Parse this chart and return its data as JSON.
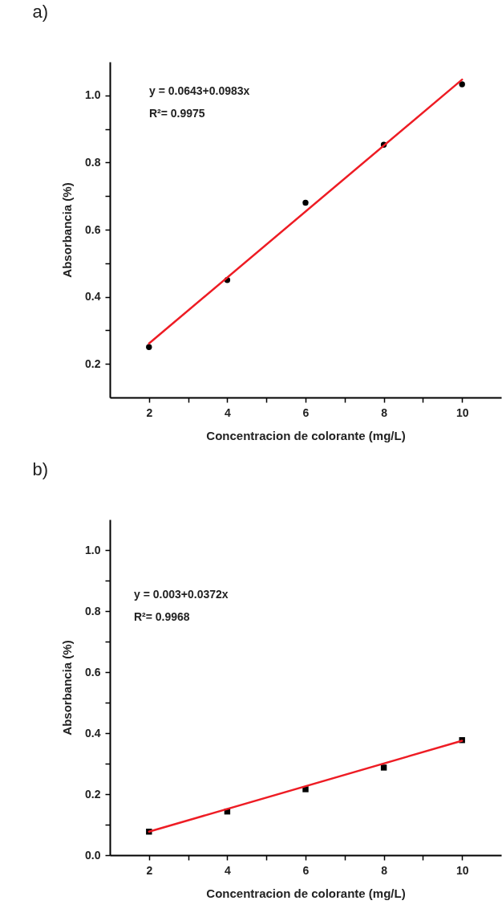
{
  "chart_data": [
    {
      "type": "scatter",
      "title": "a)",
      "xlabel": "Concentracion de colorante (mg/L)",
      "ylabel": "Absorbancia (%)",
      "grid": false,
      "xlim": [
        1,
        11
      ],
      "xticks": [
        2,
        {
          "value": 3,
          "label": null
        },
        4,
        {
          "value": 5,
          "label": null
        },
        6,
        {
          "value": 7,
          "label": null
        },
        8,
        {
          "value": 9,
          "label": null
        },
        10
      ],
      "ylim": [
        0.1,
        1.1
      ],
      "yticks": [
        0.2,
        {
          "value": 0.3,
          "label": null
        },
        0.4,
        {
          "value": 0.5,
          "label": null
        },
        0.6,
        {
          "value": 0.7,
          "label": null
        },
        0.8,
        {
          "value": 0.9,
          "label": null
        },
        {
          "value": 1,
          "label": "1.0"
        }
      ],
      "annotations": [
        "y = 0.0643+0.0983x",
        "R²= 0.9975"
      ],
      "series": [
        {
          "marker": "circle",
          "color": "#000000",
          "x": [
            2,
            4,
            6,
            8,
            10
          ],
          "values": [
            0.25,
            0.45,
            0.68,
            0.853,
            1.033
          ]
        },
        {
          "type": "line",
          "color": "#ee1c24",
          "x": [
            2,
            10
          ],
          "values": [
            0.261,
            1.047
          ]
        }
      ]
    },
    {
      "type": "scatter",
      "title": "b)",
      "xlabel": "Concentracion de colorante (mg/L)",
      "ylabel": "Absorbancia (%)",
      "grid": false,
      "xlim": [
        1,
        11
      ],
      "xticks": [
        2,
        {
          "value": 3,
          "label": null
        },
        4,
        {
          "value": 5,
          "label": null
        },
        6,
        {
          "value": 7,
          "label": null
        },
        8,
        {
          "value": 9,
          "label": null
        },
        10
      ],
      "ylim": [
        0,
        1.1
      ],
      "yticks": [
        {
          "value": 0,
          "label": "0.0"
        },
        {
          "value": 0.1,
          "label": null
        },
        0.2,
        {
          "value": 0.3,
          "label": null
        },
        0.4,
        {
          "value": 0.5,
          "label": null
        },
        0.6,
        {
          "value": 0.7,
          "label": null
        },
        0.8,
        {
          "value": 0.9,
          "label": null
        },
        {
          "value": 1,
          "label": "1.0"
        }
      ],
      "annotations": [
        "y = 0.003+0.0372x",
        "R²= 0.9968"
      ],
      "series": [
        {
          "marker": "square",
          "color": "#000000",
          "x": [
            2,
            4,
            6,
            8,
            10
          ],
          "values": [
            0.077,
            0.143,
            0.216,
            0.287,
            0.377
          ]
        },
        {
          "type": "line",
          "color": "#ee1c24",
          "x": [
            2,
            10
          ],
          "values": [
            0.077,
            0.375
          ]
        }
      ]
    }
  ]
}
